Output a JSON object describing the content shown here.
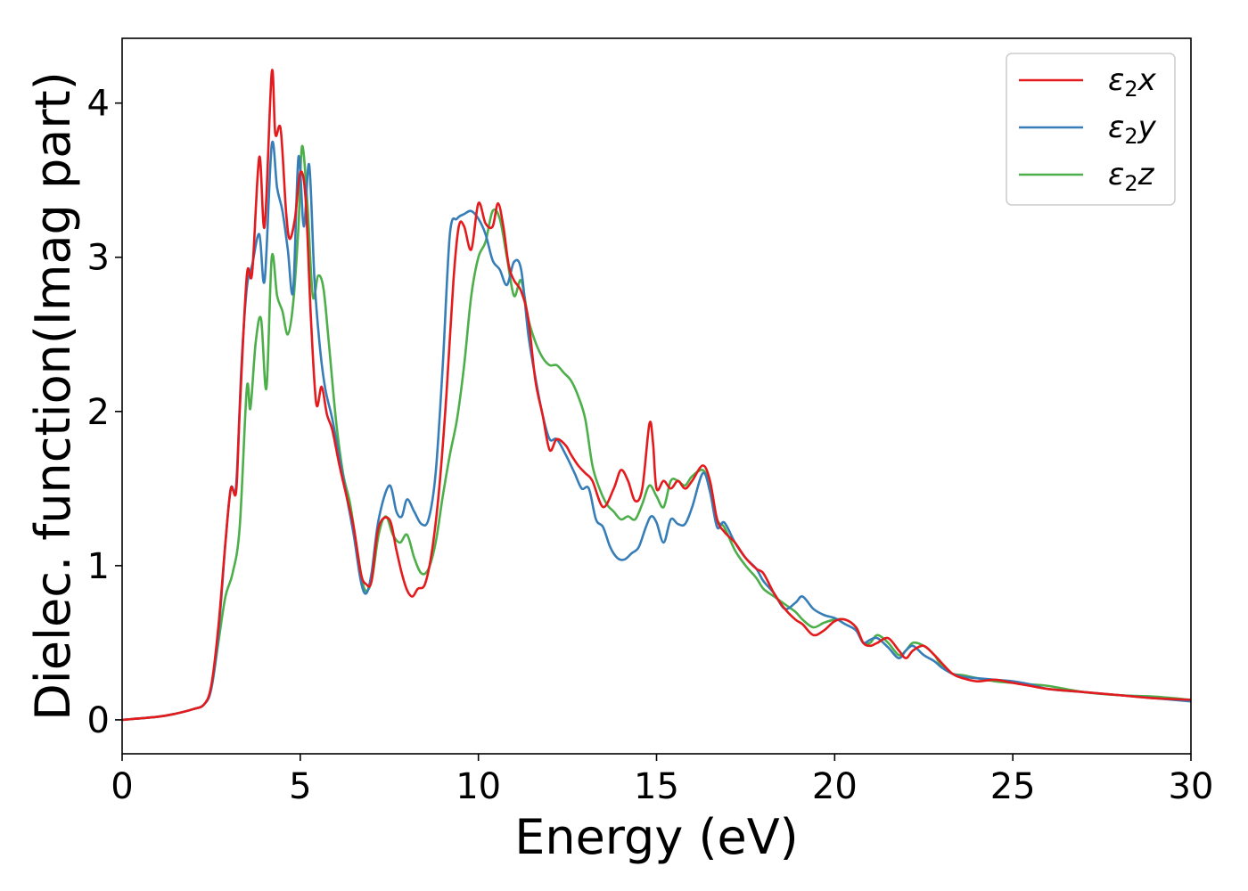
{
  "chart_data": {
    "type": "line",
    "title": "",
    "xlabel": "Energy (eV)",
    "ylabel": "Dielec. function(Imag part)",
    "xlim": [
      0,
      30
    ],
    "ylim": [
      -0.22,
      4.42
    ],
    "xticks": [
      0,
      5,
      10,
      15,
      20,
      25,
      30
    ],
    "yticks": [
      0,
      1,
      2,
      3,
      4
    ],
    "grid": false,
    "legend": "top-right",
    "series": [
      {
        "name": "ε2x",
        "label_base": "ε",
        "label_sub": "2",
        "label_var": "x",
        "color": "#e41a1c",
        "x": [
          0,
          1,
          1.5,
          2,
          2.3,
          2.5,
          2.7,
          2.9,
          3.05,
          3.2,
          3.3,
          3.5,
          3.65,
          3.85,
          4.0,
          4.2,
          4.3,
          4.45,
          4.6,
          4.7,
          4.85,
          5.0,
          5.15,
          5.3,
          5.45,
          5.6,
          5.75,
          5.9,
          6.1,
          6.3,
          6.5,
          6.7,
          6.85,
          7.0,
          7.2,
          7.5,
          7.7,
          7.85,
          8.0,
          8.15,
          8.3,
          8.5,
          8.7,
          8.9,
          9.1,
          9.3,
          9.45,
          9.6,
          9.8,
          10.0,
          10.2,
          10.4,
          10.55,
          10.7,
          10.85,
          11.0,
          11.2,
          11.4,
          11.6,
          11.8,
          12.0,
          12.2,
          12.45,
          12.6,
          12.8,
          13.0,
          13.2,
          13.5,
          13.8,
          14.0,
          14.2,
          14.4,
          14.6,
          14.8,
          14.9,
          15.0,
          15.2,
          15.4,
          15.6,
          15.8,
          16.0,
          16.3,
          16.5,
          16.7,
          16.9,
          17.2,
          17.5,
          17.8,
          18.0,
          18.3,
          18.6,
          18.9,
          19.1,
          19.4,
          19.7,
          20.0,
          20.3,
          20.6,
          20.8,
          21.0,
          21.2,
          21.5,
          21.8,
          22.0,
          22.2,
          22.5,
          22.8,
          23.0,
          23.3,
          23.6,
          24.0,
          24.5,
          25.0,
          25.5,
          26.0,
          27.0,
          28.0,
          29.0,
          30.0
        ],
        "y": [
          0,
          0.02,
          0.04,
          0.07,
          0.1,
          0.22,
          0.6,
          1.15,
          1.5,
          1.48,
          2.0,
          2.88,
          2.9,
          3.65,
          3.2,
          4.2,
          3.8,
          3.83,
          3.3,
          3.12,
          3.25,
          3.55,
          3.38,
          2.6,
          2.05,
          2.16,
          1.98,
          1.88,
          1.65,
          1.45,
          1.25,
          0.95,
          0.88,
          0.9,
          1.25,
          1.3,
          1.1,
          0.95,
          0.84,
          0.8,
          0.85,
          0.88,
          1.1,
          1.5,
          2.1,
          2.85,
          3.2,
          3.2,
          3.05,
          3.35,
          3.22,
          3.2,
          3.35,
          3.2,
          2.95,
          2.85,
          2.78,
          2.6,
          2.2,
          1.98,
          1.75,
          1.82,
          1.78,
          1.72,
          1.65,
          1.6,
          1.55,
          1.38,
          1.5,
          1.62,
          1.55,
          1.42,
          1.5,
          1.92,
          1.8,
          1.5,
          1.55,
          1.5,
          1.55,
          1.5,
          1.55,
          1.65,
          1.55,
          1.3,
          1.22,
          1.15,
          1.05,
          0.98,
          0.95,
          0.82,
          0.72,
          0.65,
          0.62,
          0.55,
          0.58,
          0.64,
          0.65,
          0.6,
          0.5,
          0.48,
          0.5,
          0.53,
          0.45,
          0.4,
          0.45,
          0.48,
          0.42,
          0.37,
          0.3,
          0.27,
          0.25,
          0.26,
          0.24,
          0.22,
          0.2,
          0.18,
          0.16,
          0.14,
          0.13
        ]
      },
      {
        "name": "ε2y",
        "label_base": "ε",
        "label_sub": "2",
        "label_var": "y",
        "color": "#377eb8",
        "x": [
          0,
          1,
          1.5,
          2,
          2.3,
          2.5,
          2.7,
          2.9,
          3.05,
          3.2,
          3.35,
          3.5,
          3.65,
          3.85,
          4.0,
          4.2,
          4.35,
          4.5,
          4.65,
          4.8,
          4.95,
          5.1,
          5.25,
          5.4,
          5.55,
          5.7,
          5.9,
          6.1,
          6.3,
          6.5,
          6.7,
          6.85,
          7.0,
          7.2,
          7.5,
          7.7,
          7.85,
          8.0,
          8.2,
          8.4,
          8.6,
          8.8,
          9.0,
          9.2,
          9.4,
          9.6,
          9.8,
          10.0,
          10.2,
          10.4,
          10.6,
          10.8,
          11.0,
          11.2,
          11.4,
          11.6,
          11.8,
          12.0,
          12.2,
          12.45,
          12.7,
          12.9,
          13.1,
          13.3,
          13.5,
          13.7,
          13.9,
          14.1,
          14.3,
          14.5,
          14.7,
          14.85,
          15.0,
          15.2,
          15.4,
          15.6,
          15.8,
          16.0,
          16.3,
          16.5,
          16.7,
          16.9,
          17.2,
          17.5,
          17.8,
          18.0,
          18.3,
          18.6,
          18.9,
          19.1,
          19.4,
          19.7,
          20.0,
          20.3,
          20.6,
          20.8,
          21.0,
          21.2,
          21.5,
          21.8,
          22.0,
          22.2,
          22.5,
          22.8,
          23.0,
          23.3,
          23.6,
          24.0,
          24.5,
          25.0,
          25.5,
          26.0,
          27.0,
          28.0,
          29.0,
          30.0
        ],
        "y": [
          0,
          0.02,
          0.04,
          0.07,
          0.1,
          0.2,
          0.55,
          1.15,
          1.5,
          1.52,
          2.3,
          2.8,
          2.95,
          3.15,
          2.85,
          3.73,
          3.45,
          3.3,
          3.05,
          2.78,
          3.65,
          3.2,
          3.6,
          2.85,
          2.42,
          2.15,
          1.95,
          1.7,
          1.45,
          1.2,
          0.9,
          0.82,
          0.95,
          1.3,
          1.52,
          1.35,
          1.32,
          1.43,
          1.35,
          1.27,
          1.3,
          1.6,
          2.3,
          3.15,
          3.25,
          3.28,
          3.3,
          3.25,
          3.15,
          2.98,
          2.92,
          2.82,
          2.97,
          2.92,
          2.5,
          2.22,
          1.98,
          1.82,
          1.82,
          1.72,
          1.6,
          1.5,
          1.5,
          1.3,
          1.25,
          1.12,
          1.05,
          1.04,
          1.08,
          1.12,
          1.25,
          1.32,
          1.28,
          1.15,
          1.3,
          1.27,
          1.27,
          1.38,
          1.6,
          1.48,
          1.25,
          1.28,
          1.15,
          1.05,
          0.98,
          0.9,
          0.82,
          0.72,
          0.76,
          0.8,
          0.72,
          0.68,
          0.66,
          0.62,
          0.58,
          0.5,
          0.52,
          0.53,
          0.47,
          0.4,
          0.45,
          0.48,
          0.42,
          0.38,
          0.34,
          0.3,
          0.28,
          0.27,
          0.26,
          0.25,
          0.23,
          0.2,
          0.18,
          0.16,
          0.14,
          0.12
        ]
      },
      {
        "name": "ε2z",
        "label_base": "ε",
        "label_sub": "2",
        "label_var": "z",
        "color": "#4daf4a",
        "x": [
          0,
          1,
          1.5,
          2,
          2.3,
          2.5,
          2.7,
          2.9,
          3.1,
          3.3,
          3.5,
          3.6,
          3.75,
          3.9,
          4.05,
          4.2,
          4.35,
          4.5,
          4.65,
          4.8,
          4.95,
          5.05,
          5.2,
          5.35,
          5.5,
          5.65,
          5.8,
          6.0,
          6.2,
          6.4,
          6.6,
          6.8,
          7.0,
          7.2,
          7.4,
          7.6,
          7.8,
          8.0,
          8.2,
          8.4,
          8.6,
          8.8,
          9.0,
          9.2,
          9.4,
          9.6,
          9.8,
          10.0,
          10.2,
          10.4,
          10.6,
          10.8,
          11.0,
          11.2,
          11.4,
          11.6,
          11.8,
          12.0,
          12.2,
          12.4,
          12.6,
          12.8,
          13.0,
          13.2,
          13.4,
          13.6,
          13.8,
          14.0,
          14.2,
          14.4,
          14.6,
          14.8,
          15.0,
          15.2,
          15.4,
          15.6,
          15.8,
          16.0,
          16.3,
          16.5,
          16.7,
          16.9,
          17.2,
          17.5,
          17.8,
          18.0,
          18.3,
          18.6,
          18.9,
          19.1,
          19.4,
          19.7,
          20.0,
          20.3,
          20.6,
          20.8,
          21.0,
          21.2,
          21.5,
          21.8,
          22.0,
          22.2,
          22.5,
          22.8,
          23.0,
          23.3,
          23.6,
          24.0,
          24.5,
          25.0,
          25.5,
          26.0,
          27.0,
          28.0,
          29.0,
          30.0
        ],
        "y": [
          0,
          0.02,
          0.04,
          0.07,
          0.1,
          0.2,
          0.5,
          0.8,
          0.95,
          1.25,
          2.15,
          2.02,
          2.45,
          2.6,
          2.15,
          3.0,
          2.75,
          2.65,
          2.5,
          2.7,
          3.2,
          3.72,
          3.35,
          2.75,
          2.88,
          2.8,
          2.45,
          1.95,
          1.6,
          1.4,
          1.1,
          0.85,
          0.9,
          1.2,
          1.32,
          1.2,
          1.15,
          1.2,
          1.05,
          0.95,
          0.98,
          1.15,
          1.45,
          1.72,
          1.95,
          2.3,
          2.75,
          3.0,
          3.1,
          3.3,
          3.25,
          3.0,
          2.75,
          2.85,
          2.6,
          2.45,
          2.35,
          2.3,
          2.3,
          2.25,
          2.2,
          2.1,
          1.95,
          1.65,
          1.5,
          1.4,
          1.35,
          1.3,
          1.32,
          1.3,
          1.4,
          1.52,
          1.45,
          1.38,
          1.55,
          1.55,
          1.52,
          1.58,
          1.62,
          1.52,
          1.3,
          1.25,
          1.1,
          1.0,
          0.92,
          0.85,
          0.8,
          0.75,
          0.7,
          0.65,
          0.6,
          0.63,
          0.65,
          0.65,
          0.6,
          0.5,
          0.5,
          0.55,
          0.5,
          0.42,
          0.45,
          0.5,
          0.48,
          0.42,
          0.35,
          0.3,
          0.29,
          0.27,
          0.25,
          0.24,
          0.23,
          0.22,
          0.18,
          0.16,
          0.15,
          0.13
        ]
      }
    ]
  }
}
